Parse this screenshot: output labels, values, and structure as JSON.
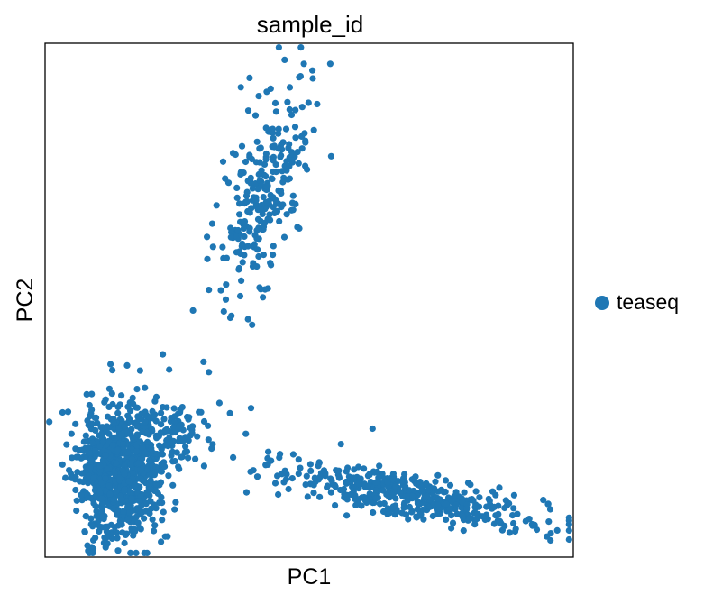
{
  "chart_data": {
    "type": "scatter",
    "title": "sample_id",
    "xlabel": "PC1",
    "ylabel": "PC2",
    "grid": false,
    "ticks": false,
    "legend_position": "right",
    "xlim": [
      0,
      100
    ],
    "ylim": [
      0,
      100
    ],
    "series": [
      {
        "name": "teaseq",
        "color": "#1f77b4",
        "clusters": [
          {
            "cx": 14,
            "cy": 17,
            "sx": 4.0,
            "sy": 6.5,
            "rho": 0.0,
            "n": 850,
            "seed": 11
          },
          {
            "cx": 24,
            "cy": 24,
            "sx": 3.5,
            "sy": 3.5,
            "rho": 0.0,
            "n": 90,
            "seed": 23
          },
          {
            "cx": 42,
            "cy": 72,
            "sx": 4.2,
            "sy": 10,
            "rho": 0.55,
            "n": 260,
            "seed": 37
          },
          {
            "cx": 68,
            "cy": 12,
            "sx": 12,
            "sy": 3.2,
            "rho": -0.75,
            "n": 420,
            "seed": 53
          }
        ],
        "points": [
          {
            "x": 49,
            "y": 96
          },
          {
            "x": 54,
            "y": 96
          },
          {
            "x": 28,
            "y": 48
          },
          {
            "x": 31,
            "y": 52
          },
          {
            "x": 30,
            "y": 38
          },
          {
            "x": 31,
            "y": 36
          },
          {
            "x": 33,
            "y": 30
          },
          {
            "x": 35,
            "y": 28
          },
          {
            "x": 38,
            "y": 24
          },
          {
            "x": 39,
            "y": 29
          },
          {
            "x": 47,
            "y": 20
          },
          {
            "x": 48,
            "y": 19
          },
          {
            "x": 86,
            "y": 7
          },
          {
            "x": 89,
            "y": 5
          },
          {
            "x": 95,
            "y": 4
          },
          {
            "x": 91,
            "y": 7
          },
          {
            "x": 5,
            "y": 24
          },
          {
            "x": 6,
            "y": 11
          },
          {
            "x": 9,
            "y": 6
          },
          {
            "x": 17,
            "y": 5
          },
          {
            "x": 56,
            "y": 22
          },
          {
            "x": 62,
            "y": 25
          }
        ]
      }
    ]
  }
}
